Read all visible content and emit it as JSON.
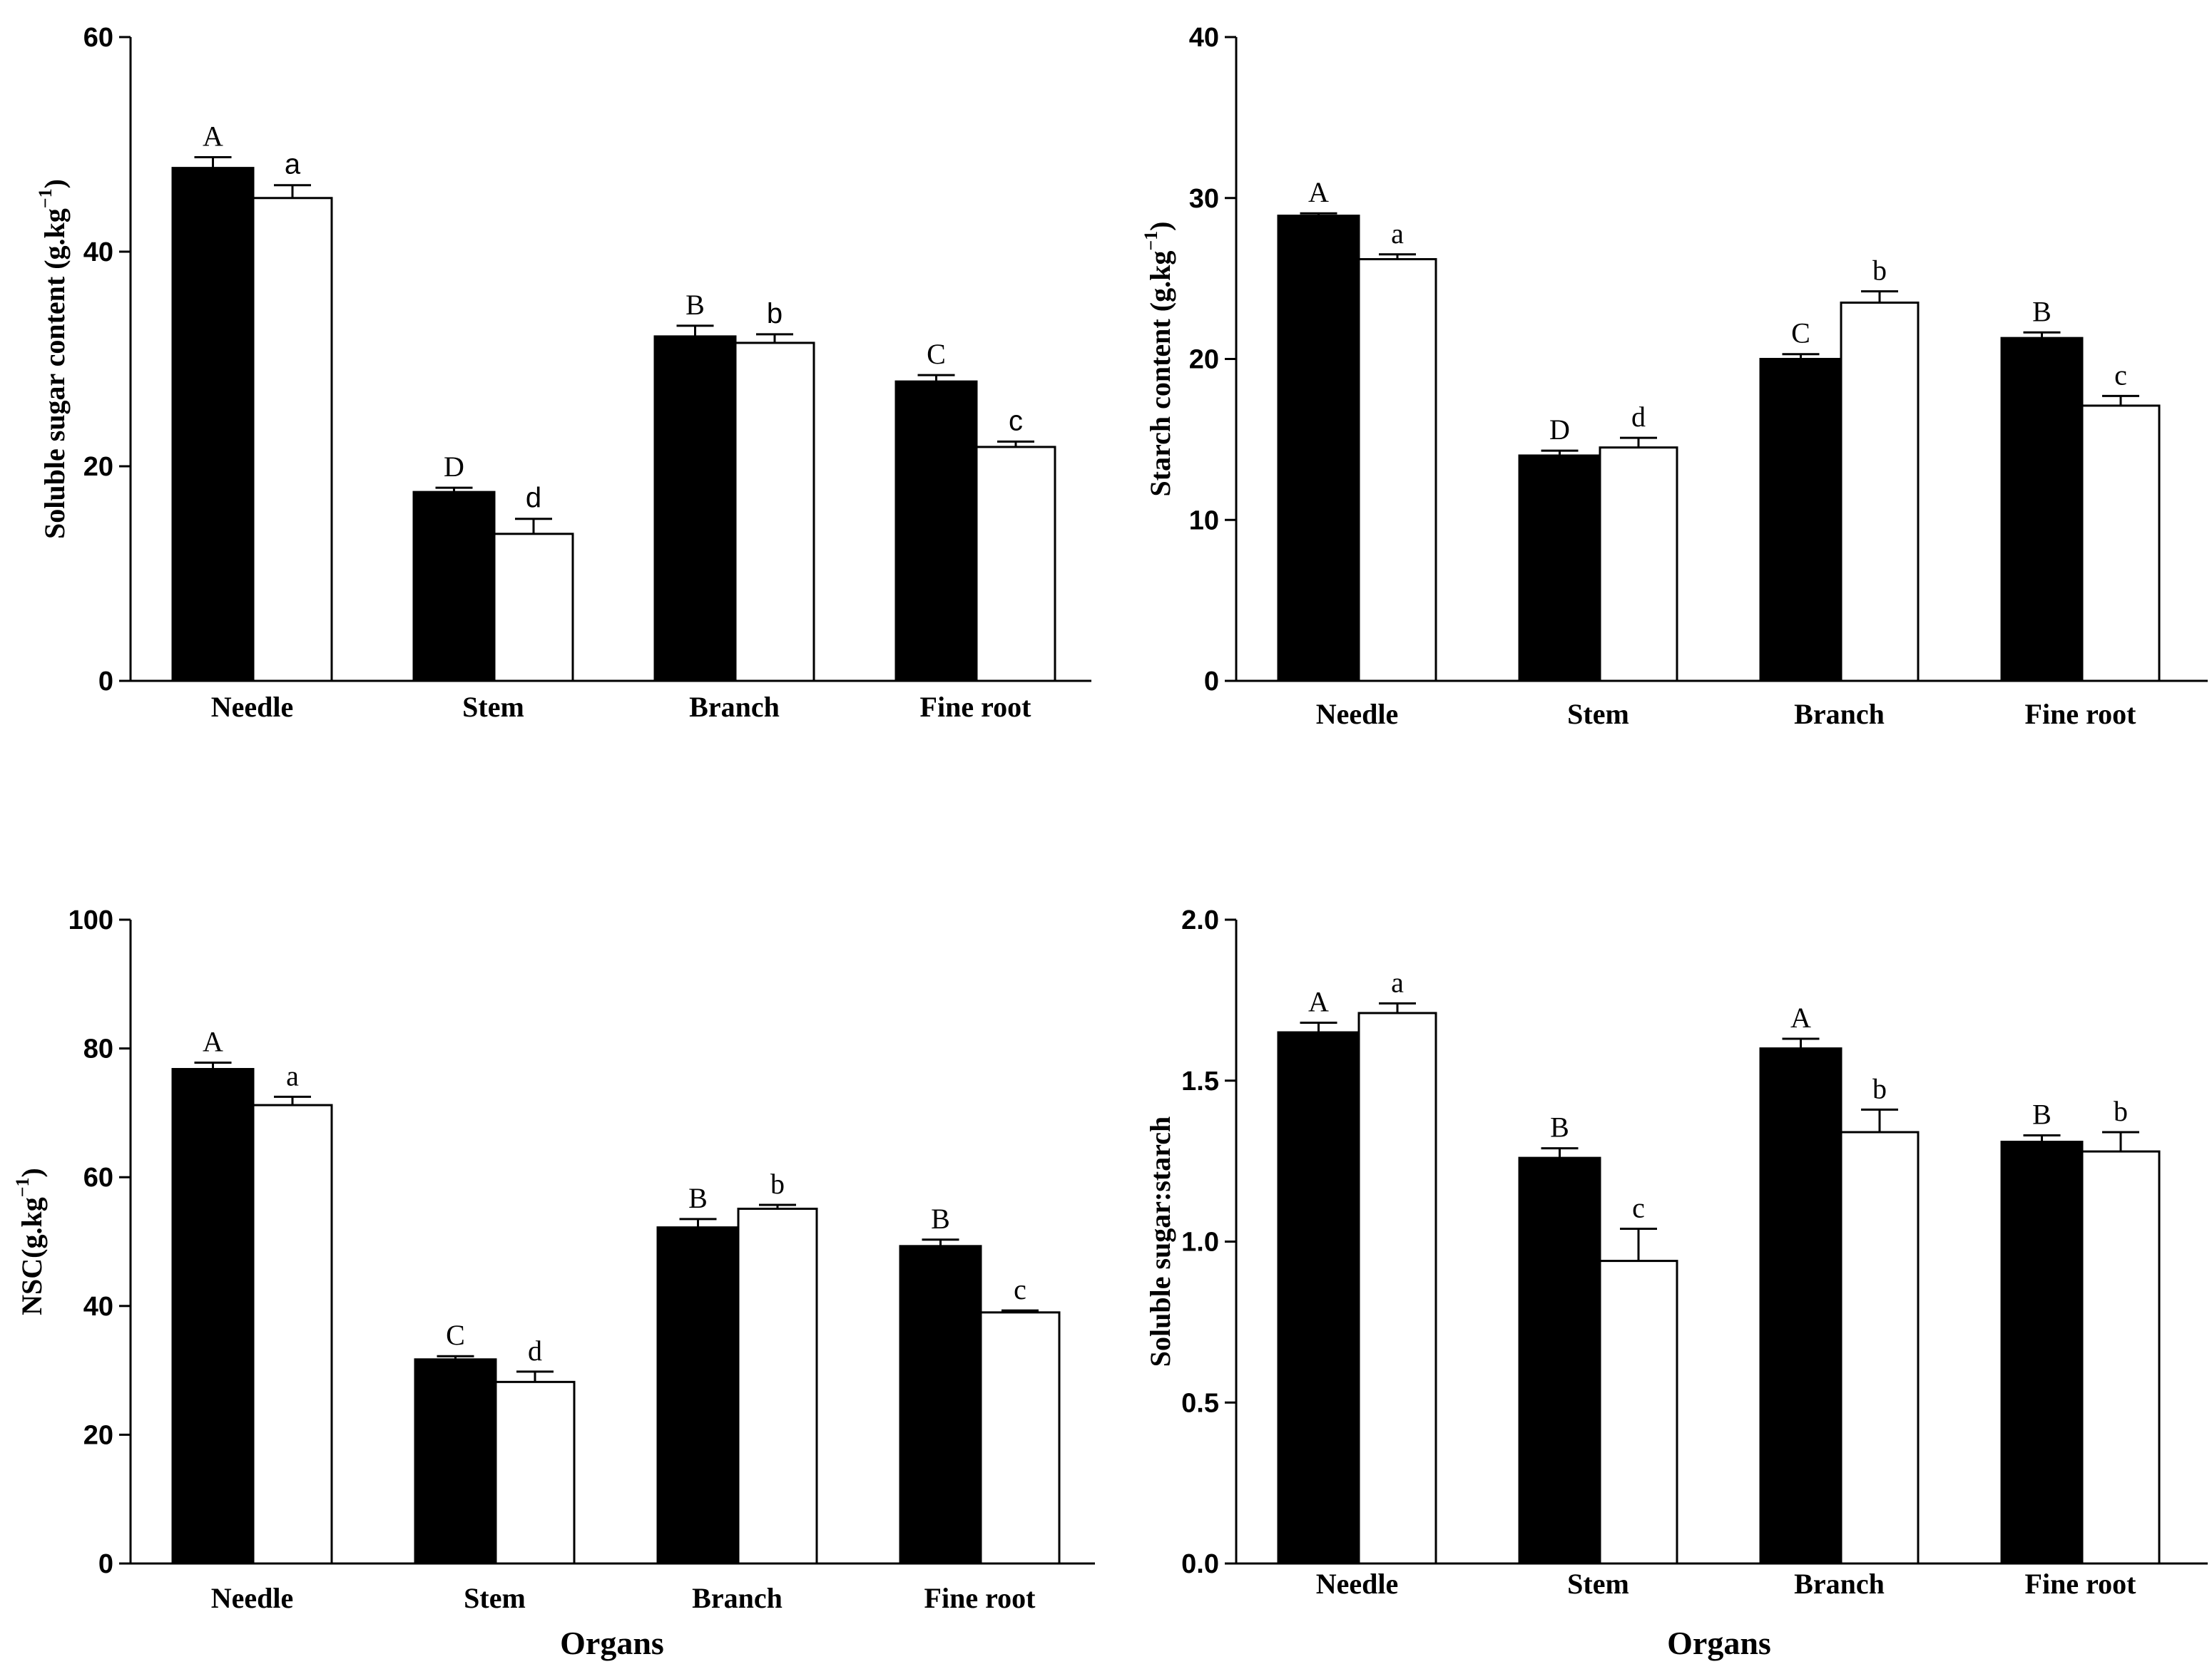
{
  "chart_data": [
    {
      "type": "bar",
      "categories": [
        "Needle",
        "Stem",
        "Branch",
        "Fine root"
      ],
      "series": [
        {
          "name": "series 1 (black)",
          "color": "#000000",
          "values": [
            47.8,
            17.6,
            32.1,
            27.9
          ],
          "errors": [
            1.0,
            0.4,
            1.0,
            0.6
          ],
          "letters": [
            "A",
            "D",
            "B",
            "C"
          ]
        },
        {
          "name": "series 2 (white)",
          "color": "#ffffff",
          "values": [
            45.0,
            13.7,
            31.5,
            21.8
          ],
          "errors": [
            1.2,
            1.4,
            0.8,
            0.5
          ],
          "letters": [
            "a",
            "d",
            "b",
            "c"
          ]
        }
      ],
      "ylabel": "Soluble sugar content (g.kg",
      "ylabel_sup": "−1",
      "ylabel_close": ")",
      "xlabel": "",
      "ylim": [
        0,
        60
      ],
      "yticks": [
        "0",
        "20",
        "40",
        "60"
      ]
    },
    {
      "type": "bar",
      "categories": [
        "Needle",
        "Stem",
        "Branch",
        "Fine root"
      ],
      "series": [
        {
          "name": "series 1 (black)",
          "color": "#000000",
          "values": [
            28.9,
            14.0,
            20.0,
            21.3
          ],
          "errors": [
            0.15,
            0.3,
            0.3,
            0.35
          ],
          "letters": [
            "A",
            "D",
            "C",
            "B"
          ]
        },
        {
          "name": "series 2 (white)",
          "color": "#ffffff",
          "values": [
            26.2,
            14.5,
            23.5,
            17.1
          ],
          "errors": [
            0.3,
            0.6,
            0.7,
            0.6
          ],
          "letters": [
            "a",
            "d",
            "b",
            "c"
          ]
        }
      ],
      "ylabel": "Starch content (g.kg",
      "ylabel_sup": "−1",
      "ylabel_close": ")",
      "xlabel": "",
      "ylim": [
        0,
        40
      ],
      "yticks": [
        "0",
        "10",
        "20",
        "30",
        "40"
      ]
    },
    {
      "type": "bar",
      "categories": [
        "Needle",
        "Stem",
        "Branch",
        "Fine root"
      ],
      "series": [
        {
          "name": "series 1 (black)",
          "color": "#000000",
          "values": [
            76.8,
            31.7,
            52.2,
            49.3
          ],
          "errors": [
            1.0,
            0.5,
            1.3,
            1.0
          ],
          "letters": [
            "A",
            "C",
            "B",
            "B"
          ]
        },
        {
          "name": "series 2 (white)",
          "color": "#ffffff",
          "values": [
            71.2,
            28.2,
            55.1,
            39.0
          ],
          "errors": [
            1.3,
            1.6,
            0.6,
            0.3
          ],
          "letters": [
            "a",
            "d",
            "b",
            "c"
          ]
        }
      ],
      "ylabel": "NSC(g.kg",
      "ylabel_sup": "−1",
      "ylabel_close": ")",
      "xlabel": "Organs",
      "ylim": [
        0,
        100
      ],
      "yticks": [
        "0",
        "20",
        "40",
        "60",
        "80",
        "100"
      ]
    },
    {
      "type": "bar",
      "categories": [
        "Needle",
        "Stem",
        "Branch",
        "Fine root"
      ],
      "series": [
        {
          "name": "series 1 (black)",
          "color": "#000000",
          "values": [
            1.65,
            1.26,
            1.6,
            1.31
          ],
          "errors": [
            0.03,
            0.03,
            0.03,
            0.02
          ],
          "letters": [
            "A",
            "B",
            "A",
            "B"
          ]
        },
        {
          "name": "series 2 (white)",
          "color": "#ffffff",
          "values": [
            1.71,
            0.94,
            1.34,
            1.28
          ],
          "errors": [
            0.03,
            0.1,
            0.07,
            0.06
          ],
          "letters": [
            "a",
            "c",
            "b",
            "b"
          ]
        }
      ],
      "ylabel": "Soluble sugar:starch",
      "ylabel_sup": "",
      "ylabel_close": "",
      "xlabel": "Organs",
      "ylim": [
        0,
        2.0
      ],
      "yticks": [
        "0.0",
        "0.5",
        "1.0",
        "1.5",
        "2.0"
      ]
    }
  ]
}
